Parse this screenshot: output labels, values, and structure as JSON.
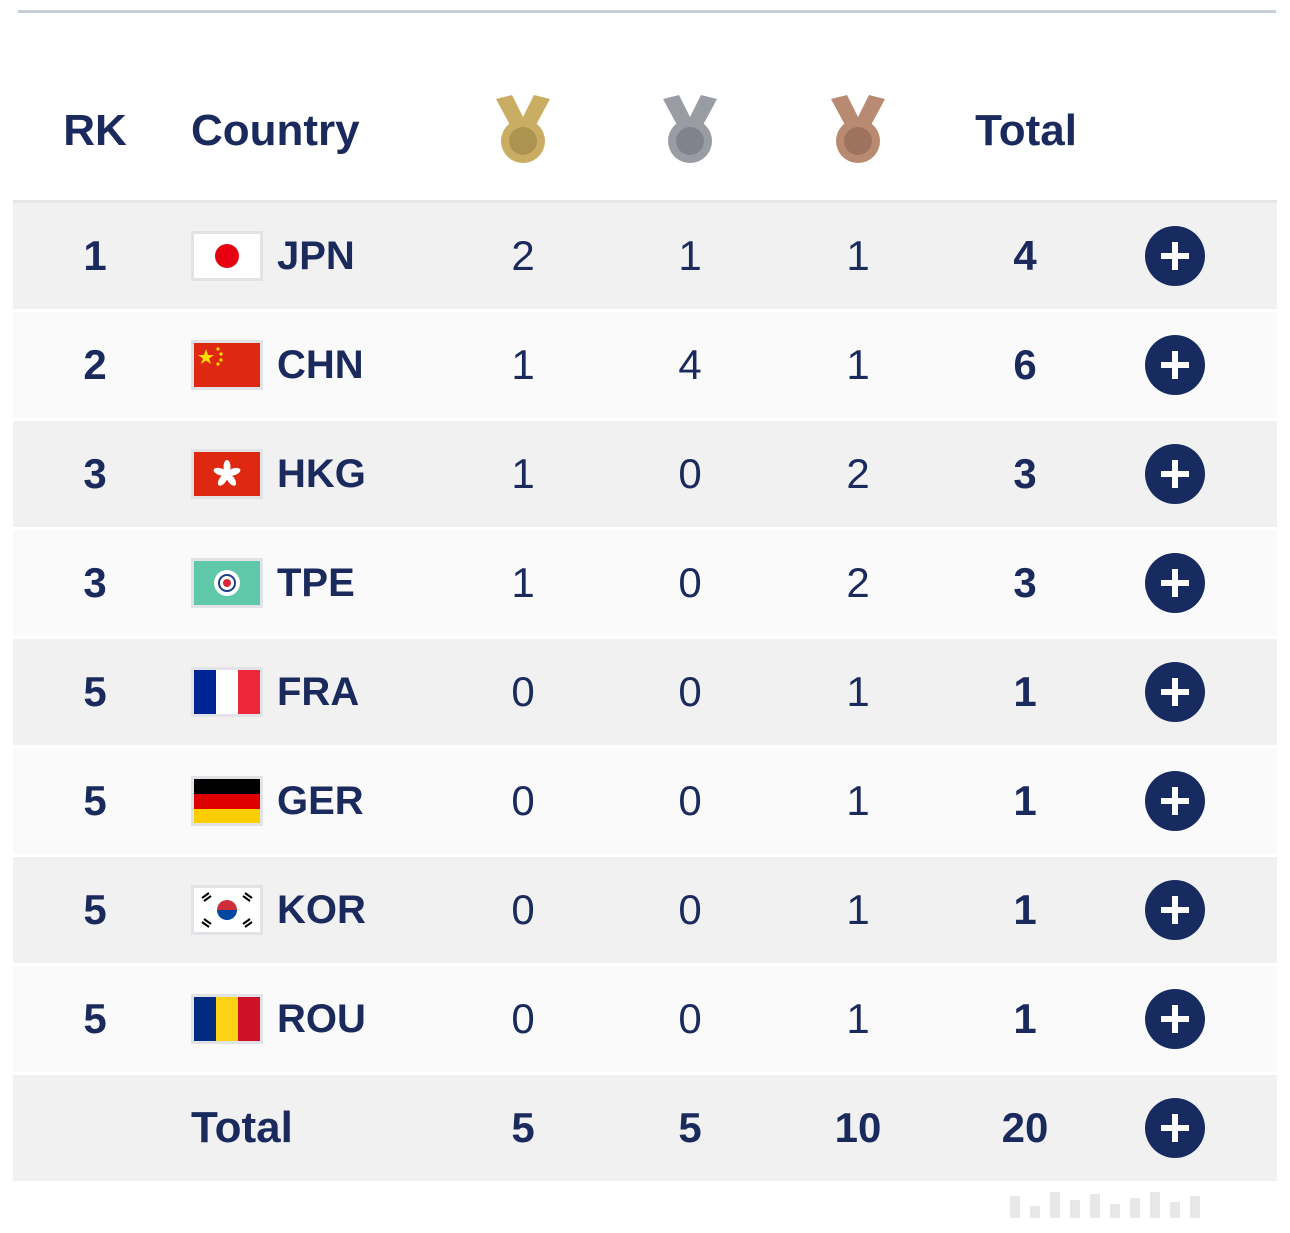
{
  "header": {
    "rank_label": "RK",
    "country_label": "Country",
    "gold_icon": "gold-medal-icon",
    "silver_icon": "silver-medal-icon",
    "bronze_icon": "bronze-medal-icon",
    "total_label": "Total"
  },
  "rows": [
    {
      "rank": "1",
      "country": "JPN",
      "flag": "japan-flag-icon",
      "gold": "2",
      "silver": "1",
      "bronze": "1",
      "total": "4"
    },
    {
      "rank": "2",
      "country": "CHN",
      "flag": "china-flag-icon",
      "gold": "1",
      "silver": "4",
      "bronze": "1",
      "total": "6"
    },
    {
      "rank": "3",
      "country": "HKG",
      "flag": "hong-kong-flag-icon",
      "gold": "1",
      "silver": "0",
      "bronze": "2",
      "total": "3"
    },
    {
      "rank": "3",
      "country": "TPE",
      "flag": "chinese-taipei-flag-icon",
      "gold": "1",
      "silver": "0",
      "bronze": "2",
      "total": "3"
    },
    {
      "rank": "5",
      "country": "FRA",
      "flag": "france-flag-icon",
      "gold": "0",
      "silver": "0",
      "bronze": "1",
      "total": "1"
    },
    {
      "rank": "5",
      "country": "GER",
      "flag": "germany-flag-icon",
      "gold": "0",
      "silver": "0",
      "bronze": "1",
      "total": "1"
    },
    {
      "rank": "5",
      "country": "KOR",
      "flag": "korea-flag-icon",
      "gold": "0",
      "silver": "0",
      "bronze": "1",
      "total": "1"
    },
    {
      "rank": "5",
      "country": "ROU",
      "flag": "romania-flag-icon",
      "gold": "0",
      "silver": "0",
      "bronze": "1",
      "total": "1"
    }
  ],
  "totals": {
    "label": "Total",
    "gold": "5",
    "silver": "5",
    "bronze": "10",
    "total": "20"
  },
  "expand_icon": "plus-icon",
  "colors": {
    "text": "#1b2a5c",
    "button": "#182b61",
    "row_shaded": "#f1f1f2",
    "gold": "#c9ad62",
    "silver": "#9a9ca4",
    "bronze": "#b98a72"
  }
}
